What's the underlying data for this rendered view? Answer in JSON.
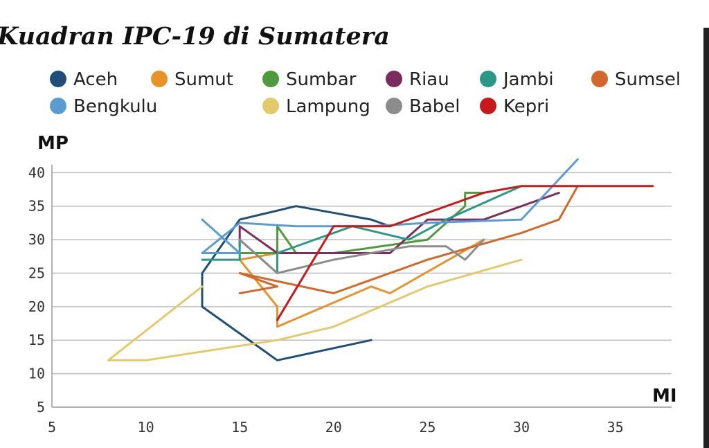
{
  "chart_data": {
    "type": "line",
    "title": "Kuadran IPC-19 di Sumatera",
    "xlabel": "MI",
    "ylabel": "MP",
    "xlim": [
      5,
      38
    ],
    "ylim": [
      5,
      42
    ],
    "x_ticks": [
      5,
      10,
      15,
      20,
      25,
      30,
      35
    ],
    "y_ticks": [
      5,
      10,
      15,
      20,
      25,
      30,
      35,
      40
    ],
    "grid": "horizontal",
    "legend_position": "top",
    "series": [
      {
        "name": "Aceh",
        "color": "#1f4e79",
        "points": [
          [
            22,
            15
          ],
          [
            17,
            12
          ],
          [
            13,
            20
          ],
          [
            13,
            25
          ],
          [
            15,
            33
          ],
          [
            18,
            35
          ],
          [
            22,
            33
          ],
          [
            23,
            32
          ]
        ]
      },
      {
        "name": "Sumut",
        "color": "#e8922a",
        "points": [
          [
            17,
            30
          ],
          [
            17,
            28
          ],
          [
            15,
            27
          ],
          [
            17,
            20
          ],
          [
            17,
            17
          ],
          [
            22,
            23
          ],
          [
            23,
            22
          ],
          [
            28,
            30
          ]
        ]
      },
      {
        "name": "Sumbar",
        "color": "#4f9a3a",
        "points": [
          [
            15,
            28
          ],
          [
            17,
            28
          ],
          [
            17,
            32
          ],
          [
            18,
            28
          ],
          [
            20,
            28
          ],
          [
            25,
            30
          ],
          [
            27,
            35
          ],
          [
            27,
            37
          ],
          [
            28,
            37
          ]
        ]
      },
      {
        "name": "Riau",
        "color": "#7b2d5e",
        "points": [
          [
            15,
            29
          ],
          [
            15,
            32
          ],
          [
            17,
            28
          ],
          [
            20,
            28
          ],
          [
            23,
            28
          ],
          [
            25,
            33
          ],
          [
            28,
            33
          ],
          [
            32,
            37
          ]
        ]
      },
      {
        "name": "Jambi",
        "color": "#2a9887",
        "points": [
          [
            13,
            27
          ],
          [
            15,
            27
          ],
          [
            15,
            30
          ],
          [
            17,
            25
          ],
          [
            17,
            28
          ],
          [
            19,
            30
          ],
          [
            21,
            32
          ],
          [
            24,
            30
          ],
          [
            26,
            33
          ],
          [
            30,
            38
          ]
        ]
      },
      {
        "name": "Sumsel",
        "color": "#d2692a",
        "points": [
          [
            15,
            22
          ],
          [
            17,
            23
          ],
          [
            15,
            25
          ],
          [
            20,
            22
          ],
          [
            25,
            27
          ],
          [
            30,
            31
          ],
          [
            32,
            33
          ],
          [
            33,
            38
          ]
        ]
      },
      {
        "name": "Bengkulu",
        "color": "#5a9bd4",
        "points": [
          [
            13,
            33
          ],
          [
            15,
            28
          ],
          [
            13,
            28
          ],
          [
            15,
            32.5
          ],
          [
            18,
            32
          ],
          [
            22,
            32
          ],
          [
            25,
            32.5
          ],
          [
            30,
            33
          ],
          [
            33,
            42
          ]
        ]
      },
      {
        "name": "Lampung",
        "color": "#e3c96a",
        "points": [
          [
            13,
            23
          ],
          [
            8,
            12
          ],
          [
            10,
            12
          ],
          [
            17,
            15
          ],
          [
            20,
            17
          ],
          [
            25,
            23
          ],
          [
            30,
            27
          ]
        ]
      },
      {
        "name": "Babel",
        "color": "#8c8c8c",
        "points": [
          [
            15,
            30
          ],
          [
            17,
            25
          ],
          [
            20,
            27
          ],
          [
            24,
            29
          ],
          [
            26,
            29
          ],
          [
            27,
            27
          ],
          [
            28,
            30
          ]
        ]
      },
      {
        "name": "Kepri",
        "color": "#c5191b",
        "points": [
          [
            17,
            18
          ],
          [
            20,
            32
          ],
          [
            23,
            32
          ],
          [
            28,
            37
          ],
          [
            30,
            38
          ],
          [
            37,
            38
          ]
        ]
      }
    ]
  }
}
